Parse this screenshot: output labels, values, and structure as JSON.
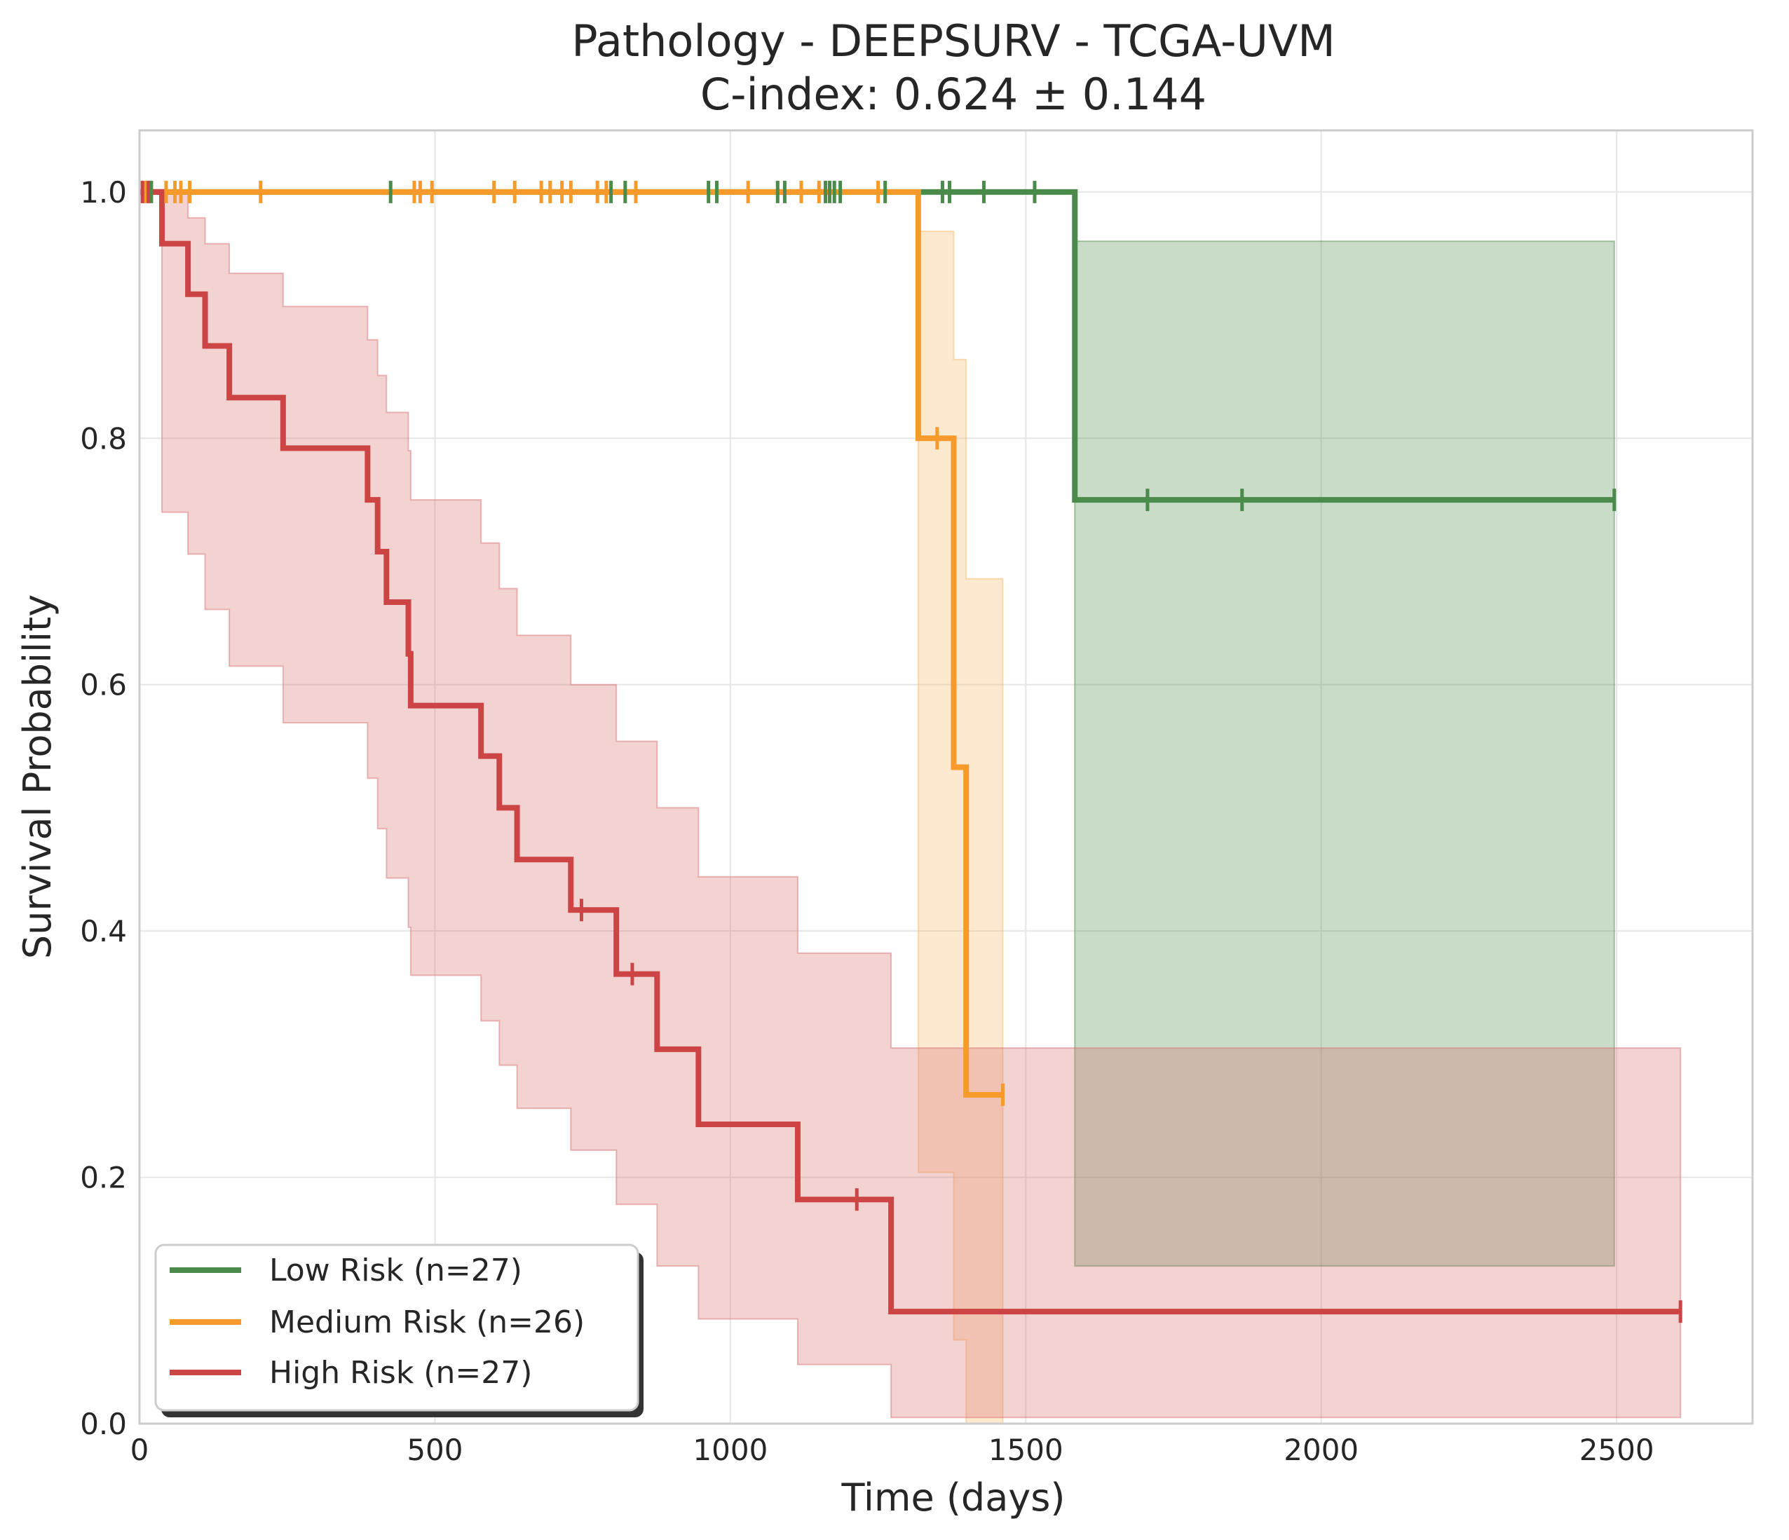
{
  "chart_data": {
    "type": "line",
    "subtype": "kaplan-meier",
    "title": "Pathology - DEEPSURV - TCGA-UVM",
    "subtitle": "C-index: 0.624 ± 0.144",
    "xlabel": "Time (days)",
    "ylabel": "Survival Probability",
    "xlim": [
      0,
      2730
    ],
    "ylim": [
      0,
      1.05
    ],
    "xticks": [
      0,
      500,
      1000,
      1500,
      2000,
      2500
    ],
    "xtick_labels": [
      "0",
      "500",
      "1000",
      "1500",
      "2000",
      "2500"
    ],
    "yticks": [
      0.0,
      0.2,
      0.4,
      0.6,
      0.8,
      1.0
    ],
    "ytick_labels": [
      "0.0",
      "0.2",
      "0.4",
      "0.6",
      "0.8",
      "1.0"
    ],
    "grid": true,
    "legend_position": "lower-left",
    "series": [
      {
        "name": "Low Risk (n=27)",
        "color": "#4a8a4a",
        "fill_color": "#4a8a4a",
        "steps": [
          [
            0,
            1.0
          ],
          [
            1583,
            0.75
          ],
          [
            2496,
            0.75
          ]
        ],
        "ci_steps": [
          [
            1583,
            0.128,
            0.96
          ],
          [
            2496,
            0.128,
            0.96
          ]
        ],
        "censor_times": [
          20,
          425,
          798,
          822,
          963,
          977,
          1080,
          1092,
          1161,
          1168,
          1176,
          1186,
          1262,
          1359,
          1371,
          1429,
          1515,
          1706,
          1866,
          2496
        ],
        "censor_values": [
          1.0,
          1.0,
          1.0,
          1.0,
          1.0,
          1.0,
          1.0,
          1.0,
          1.0,
          1.0,
          1.0,
          1.0,
          1.0,
          1.0,
          1.0,
          1.0,
          1.0,
          0.75,
          0.75,
          0.75
        ]
      },
      {
        "name": "Medium Risk (n=26)",
        "color": "#f59a2b",
        "fill_color": "#f9b563",
        "steps": [
          [
            0,
            1.0
          ],
          [
            1318,
            0.8
          ],
          [
            1378,
            0.533
          ],
          [
            1399,
            0.267
          ],
          [
            1461,
            0.267
          ]
        ],
        "ci_steps": [
          [
            1318,
            0.204,
            0.968
          ],
          [
            1378,
            0.068,
            0.864
          ],
          [
            1399,
            0.0,
            0.686
          ],
          [
            1461,
            0.0,
            0.686
          ]
        ],
        "censor_times": [
          10,
          45,
          60,
          70,
          85,
          205,
          465,
          475,
          495,
          600,
          635,
          680,
          695,
          715,
          730,
          775,
          790,
          840,
          1030,
          1120,
          1150,
          1250,
          1350,
          1461
        ],
        "censor_values": [
          1.0,
          1.0,
          1.0,
          1.0,
          1.0,
          1.0,
          1.0,
          1.0,
          1.0,
          1.0,
          1.0,
          1.0,
          1.0,
          1.0,
          1.0,
          1.0,
          1.0,
          1.0,
          1.0,
          1.0,
          1.0,
          1.0,
          0.8,
          0.267
        ]
      },
      {
        "name": "High Risk (n=27)",
        "color": "#cc4444",
        "fill_color": "#d66a6a",
        "steps": [
          [
            0,
            1.0
          ],
          [
            38,
            0.958
          ],
          [
            82,
            0.917
          ],
          [
            111,
            0.875
          ],
          [
            152,
            0.833
          ],
          [
            243,
            0.792
          ],
          [
            386,
            0.75
          ],
          [
            403,
            0.708
          ],
          [
            418,
            0.667
          ],
          [
            455,
            0.625
          ],
          [
            459,
            0.583
          ],
          [
            578,
            0.542
          ],
          [
            609,
            0.5
          ],
          [
            639,
            0.458
          ],
          [
            730,
            0.417
          ],
          [
            807,
            0.365
          ],
          [
            876,
            0.304
          ],
          [
            946,
            0.243
          ],
          [
            1114,
            0.182
          ],
          [
            1272,
            0.091
          ],
          [
            2608,
            0.091
          ]
        ],
        "ci_steps": [
          [
            38,
            0.74,
            1.0
          ],
          [
            82,
            0.706,
            0.979
          ],
          [
            111,
            0.661,
            0.958
          ],
          [
            152,
            0.615,
            0.934
          ],
          [
            243,
            0.569,
            0.907
          ],
          [
            386,
            0.524,
            0.88
          ],
          [
            403,
            0.483,
            0.851
          ],
          [
            418,
            0.443,
            0.821
          ],
          [
            455,
            0.403,
            0.79
          ],
          [
            459,
            0.364,
            0.75
          ],
          [
            578,
            0.327,
            0.715
          ],
          [
            609,
            0.291,
            0.678
          ],
          [
            639,
            0.256,
            0.64
          ],
          [
            730,
            0.222,
            0.6
          ],
          [
            807,
            0.178,
            0.554
          ],
          [
            876,
            0.128,
            0.5
          ],
          [
            946,
            0.085,
            0.444
          ],
          [
            1114,
            0.048,
            0.382
          ],
          [
            1272,
            0.005,
            0.305
          ],
          [
            2608,
            0.005,
            0.305
          ]
        ],
        "censor_times": [
          5,
          15,
          748,
          834,
          1214,
          2608
        ],
        "censor_values": [
          1.0,
          1.0,
          0.417,
          0.365,
          0.182,
          0.091
        ]
      }
    ]
  }
}
